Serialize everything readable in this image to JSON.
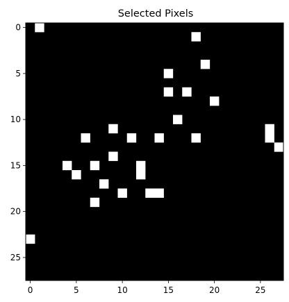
{
  "chart_data": {
    "type": "heatmap",
    "title": "Selected Pixels",
    "xlabel": "",
    "ylabel": "",
    "grid": false,
    "rows": 28,
    "cols": 28,
    "colormap": "gray",
    "background_color": "#000000",
    "pixel_color": "#ffffff",
    "x_ticks": [
      0,
      5,
      10,
      15,
      20,
      25
    ],
    "y_ticks": [
      0,
      5,
      10,
      15,
      20,
      25
    ],
    "selected_pixels": [
      {
        "x": 1,
        "y": 0
      },
      {
        "x": 18,
        "y": 1
      },
      {
        "x": 19,
        "y": 4
      },
      {
        "x": 15,
        "y": 5
      },
      {
        "x": 15,
        "y": 7
      },
      {
        "x": 17,
        "y": 7
      },
      {
        "x": 20,
        "y": 8
      },
      {
        "x": 16,
        "y": 10
      },
      {
        "x": 9,
        "y": 11
      },
      {
        "x": 26,
        "y": 11
      },
      {
        "x": 6,
        "y": 12
      },
      {
        "x": 11,
        "y": 12
      },
      {
        "x": 14,
        "y": 12
      },
      {
        "x": 18,
        "y": 12
      },
      {
        "x": 26,
        "y": 12
      },
      {
        "x": 27,
        "y": 13
      },
      {
        "x": 9,
        "y": 14
      },
      {
        "x": 4,
        "y": 15
      },
      {
        "x": 7,
        "y": 15
      },
      {
        "x": 12,
        "y": 15
      },
      {
        "x": 5,
        "y": 16
      },
      {
        "x": 12,
        "y": 16
      },
      {
        "x": 8,
        "y": 17
      },
      {
        "x": 10,
        "y": 18
      },
      {
        "x": 13,
        "y": 18
      },
      {
        "x": 14,
        "y": 18
      },
      {
        "x": 7,
        "y": 19
      },
      {
        "x": 0,
        "y": 23
      }
    ]
  }
}
